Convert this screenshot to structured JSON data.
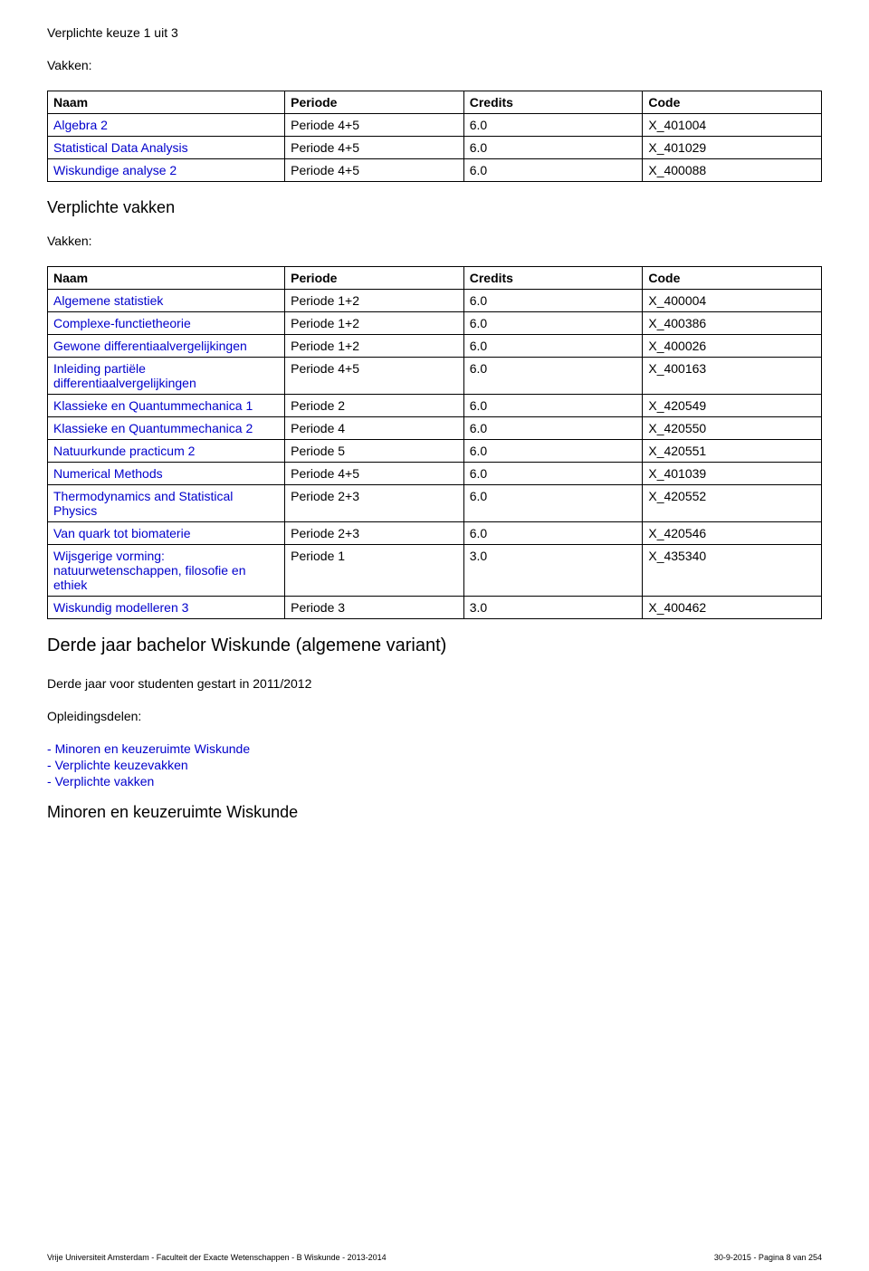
{
  "colors": {
    "link": "#0000cc",
    "border": "#000000",
    "background": "#ffffff",
    "text": "#000000"
  },
  "fonts": {
    "body_size": 14,
    "section_large": 20,
    "section_mid": 18,
    "footer_size": 9
  },
  "sec1": {
    "title": "Verplichte keuze 1 uit 3",
    "vakken_label": "Vakken:"
  },
  "table_headers": {
    "naam": "Naam",
    "periode": "Periode",
    "credits": "Credits",
    "code": "Code"
  },
  "table1": {
    "rows": [
      {
        "naam": "Algebra 2",
        "periode": "Periode 4+5",
        "credits": "6.0",
        "code": "X_401004",
        "link": true
      },
      {
        "naam": "Statistical Data Analysis",
        "periode": "Periode 4+5",
        "credits": "6.0",
        "code": "X_401029",
        "link": true
      },
      {
        "naam": "Wiskundige analyse 2",
        "periode": "Periode 4+5",
        "credits": "6.0",
        "code": "X_400088",
        "link": true
      }
    ]
  },
  "sec2": {
    "title": "Verplichte vakken",
    "vakken_label": "Vakken:"
  },
  "table2": {
    "rows": [
      {
        "naam": "Algemene statistiek",
        "periode": "Periode 1+2",
        "credits": "6.0",
        "code": "X_400004",
        "link": true
      },
      {
        "naam": "Complexe-functietheorie",
        "periode": "Periode 1+2",
        "credits": "6.0",
        "code": "X_400386",
        "link": true
      },
      {
        "naam": "Gewone differentiaalvergelijkingen",
        "periode": "Periode 1+2",
        "credits": "6.0",
        "code": "X_400026",
        "link": true
      },
      {
        "naam": "Inleiding partiële differentiaalvergelijkingen",
        "periode": "Periode 4+5",
        "credits": "6.0",
        "code": "X_400163",
        "link": true
      },
      {
        "naam": "Klassieke en Quantummechanica 1",
        "periode": "Periode 2",
        "credits": "6.0",
        "code": "X_420549",
        "link": true
      },
      {
        "naam": "Klassieke en Quantummechanica 2",
        "periode": "Periode 4",
        "credits": "6.0",
        "code": "X_420550",
        "link": true
      },
      {
        "naam": "Natuurkunde practicum 2",
        "periode": "Periode 5",
        "credits": "6.0",
        "code": "X_420551",
        "link": true
      },
      {
        "naam": "Numerical Methods",
        "periode": "Periode 4+5",
        "credits": "6.0",
        "code": "X_401039",
        "link": true
      },
      {
        "naam": "Thermodynamics and Statistical Physics",
        "periode": "Periode 2+3",
        "credits": "6.0",
        "code": "X_420552",
        "link": true
      },
      {
        "naam": "Van quark tot biomaterie",
        "periode": "Periode 2+3",
        "credits": "6.0",
        "code": "X_420546",
        "link": true
      },
      {
        "naam": "Wijsgerige vorming: natuurwetenschappen, filosofie en ethiek",
        "periode": "Periode 1",
        "credits": "3.0",
        "code": "X_435340",
        "link": true
      },
      {
        "naam": "Wiskundig modelleren 3",
        "periode": "Periode 3",
        "credits": "3.0",
        "code": "X_400462",
        "link": true
      }
    ]
  },
  "sec3": {
    "title": "Derde jaar bachelor Wiskunde (algemene variant)",
    "subtitle": "Derde jaar voor studenten gestart in 2011/2012",
    "opl_label": "Opleidingsdelen:"
  },
  "bullets": [
    "Minoren en keuzeruimte Wiskunde",
    "Verplichte keuzevakken",
    "Verplichte vakken"
  ],
  "sec4": {
    "title": "Minoren en keuzeruimte Wiskunde"
  },
  "footer": {
    "left": "Vrije Universiteit Amsterdam - Faculteit der Exacte Wetenschappen - B Wiskunde - 2013-2014",
    "right": "30-9-2015 - Pagina 8 van 254"
  }
}
